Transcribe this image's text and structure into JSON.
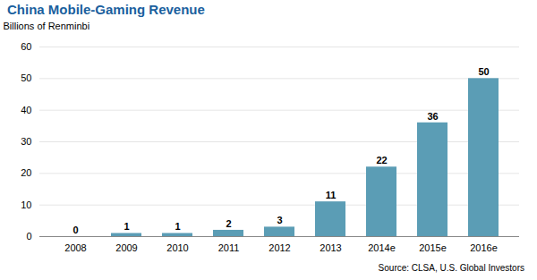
{
  "chart_data": {
    "type": "bar",
    "title": "China Mobile-Gaming Revenue",
    "ylabel": "Billions of Renminbi",
    "categories": [
      "2008",
      "2009",
      "2010",
      "2011",
      "2012",
      "2013",
      "2014e",
      "2015e",
      "2016e"
    ],
    "values": [
      0,
      1,
      1,
      2,
      3,
      11,
      22,
      36,
      50
    ],
    "color": "#5b9db5",
    "ylim": [
      0,
      60
    ],
    "yticks": [
      0,
      10,
      20,
      30,
      40,
      50,
      60
    ],
    "grid": true,
    "data_labels": true,
    "annotations": [
      "Source: CLSA, U.S. Global Investors"
    ]
  }
}
